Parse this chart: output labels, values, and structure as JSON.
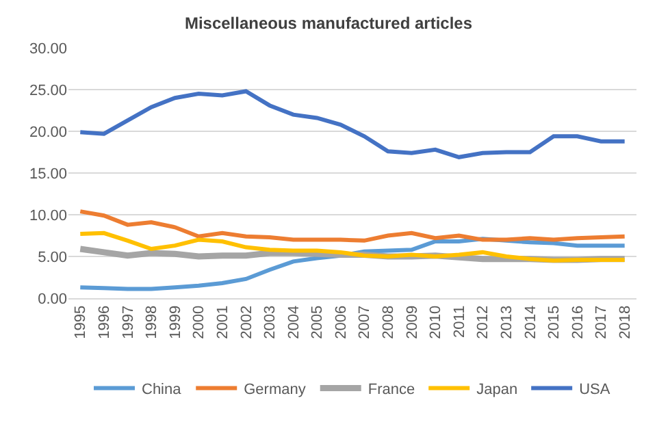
{
  "chart_data": {
    "type": "line",
    "title": "Miscellaneous manufactured articles",
    "categories": [
      "1995",
      "1996",
      "1997",
      "1998",
      "1999",
      "2000",
      "2001",
      "2002",
      "2003",
      "2004",
      "2005",
      "2006",
      "2007",
      "2008",
      "2009",
      "2010",
      "2011",
      "2012",
      "2013",
      "2014",
      "2015",
      "2016",
      "2017",
      "2018"
    ],
    "series": [
      {
        "name": "China",
        "color": "#5b9bd5",
        "values": [
          1.3,
          1.2,
          1.1,
          1.1,
          1.3,
          1.5,
          1.8,
          2.3,
          3.4,
          4.4,
          4.8,
          5.1,
          5.6,
          5.7,
          5.8,
          6.8,
          6.8,
          7.1,
          6.9,
          6.7,
          6.6,
          6.3,
          6.3,
          6.3
        ]
      },
      {
        "name": "Germany",
        "color": "#ed7d31",
        "values": [
          10.4,
          9.9,
          8.8,
          9.1,
          8.5,
          7.4,
          7.8,
          7.4,
          7.3,
          7.0,
          7.0,
          7.0,
          6.9,
          7.5,
          7.8,
          7.2,
          7.5,
          7.0,
          7.0,
          7.2,
          7.0,
          7.2,
          7.3,
          7.4
        ]
      },
      {
        "name": "France",
        "color": "#a5a5a5",
        "values": [
          5.9,
          5.5,
          5.1,
          5.4,
          5.3,
          5.0,
          5.1,
          5.1,
          5.4,
          5.4,
          5.3,
          5.2,
          5.2,
          5.0,
          5.0,
          5.1,
          4.9,
          4.7,
          4.7,
          4.7,
          4.6,
          4.6,
          4.7,
          4.7
        ]
      },
      {
        "name": "Japan",
        "color": "#ffc000",
        "values": [
          7.7,
          7.8,
          6.9,
          5.9,
          6.3,
          7.0,
          6.8,
          6.1,
          5.8,
          5.7,
          5.7,
          5.5,
          5.1,
          5.0,
          5.2,
          5.0,
          5.2,
          5.5,
          5.0,
          4.7,
          4.5,
          4.6,
          4.6,
          4.6
        ]
      },
      {
        "name": "USA",
        "color": "#4472c4",
        "values": [
          19.9,
          19.7,
          21.3,
          22.9,
          24.0,
          24.5,
          24.3,
          24.8,
          23.1,
          22.0,
          21.6,
          20.8,
          19.4,
          17.6,
          17.4,
          17.8,
          16.9,
          17.4,
          17.5,
          17.5,
          19.4,
          19.4,
          18.8,
          18.8
        ]
      }
    ],
    "ylim": [
      0,
      30
    ],
    "yticks": [
      {
        "value": 0,
        "label": "0.00"
      },
      {
        "value": 5,
        "label": "5.00"
      },
      {
        "value": 10,
        "label": "10.00"
      },
      {
        "value": 15,
        "label": "15.00"
      },
      {
        "value": 20,
        "label": "20.00"
      },
      {
        "value": 25,
        "label": "25.00"
      },
      {
        "value": 30,
        "label": "30.00"
      }
    ],
    "grid": "y",
    "legend": "bottom",
    "marker": "none",
    "line_style": "solid"
  }
}
